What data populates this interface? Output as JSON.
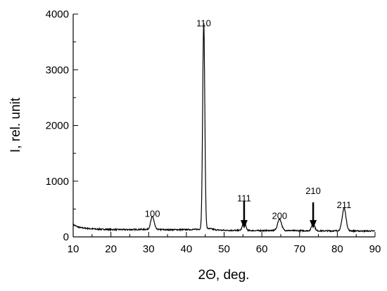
{
  "chart_data": {
    "type": "line",
    "title": "",
    "xlabel": "2Θ, deg.",
    "ylabel": "I, rel. unit",
    "xlim": [
      10,
      90
    ],
    "ylim": [
      0,
      4000
    ],
    "x_ticks": [
      10,
      20,
      30,
      40,
      50,
      60,
      70,
      80,
      90
    ],
    "y_ticks": [
      0,
      1000,
      2000,
      3000,
      4000
    ],
    "x_minor_step": 5,
    "y_minor_step": 500,
    "grid": false,
    "legend": "none",
    "line_color": "#000000",
    "baseline": [
      [
        10,
        220
      ],
      [
        11,
        185
      ],
      [
        12,
        165
      ],
      [
        14,
        150
      ],
      [
        16,
        140
      ],
      [
        20,
        132
      ],
      [
        25,
        130
      ],
      [
        29,
        135
      ],
      [
        31,
        135
      ],
      [
        35,
        128
      ],
      [
        40,
        130
      ],
      [
        43,
        135
      ],
      [
        46,
        150
      ],
      [
        48,
        125
      ],
      [
        50,
        118
      ],
      [
        55,
        115
      ],
      [
        60,
        112
      ],
      [
        63,
        115
      ],
      [
        65,
        118
      ],
      [
        68,
        112
      ],
      [
        72,
        110
      ],
      [
        76,
        108
      ],
      [
        79,
        108
      ],
      [
        82,
        112
      ],
      [
        84,
        108
      ],
      [
        87,
        105
      ],
      [
        90,
        105
      ]
    ],
    "peaks": [
      {
        "label": "100",
        "x": 31.0,
        "height": 230,
        "width": 0.45,
        "label_y": 360
      },
      {
        "label": "110",
        "x": 44.6,
        "height": 3720,
        "width": 0.28,
        "label_y": 3780
      },
      {
        "label": "111",
        "x": 55.3,
        "height": 160,
        "width": 0.4,
        "label_y": 640
      },
      {
        "label": "200",
        "x": 64.7,
        "height": 205,
        "width": 0.5,
        "label_y": 320
      },
      {
        "label": "210",
        "x": 73.6,
        "height": 140,
        "width": 0.4,
        "label_y": 770
      },
      {
        "label": "211",
        "x": 81.8,
        "height": 400,
        "width": 0.5,
        "label_y": 520
      }
    ],
    "arrows": [
      {
        "x": 55.3,
        "from": 640,
        "to": 150
      },
      {
        "x": 73.6,
        "from": 620,
        "to": 150
      }
    ]
  }
}
